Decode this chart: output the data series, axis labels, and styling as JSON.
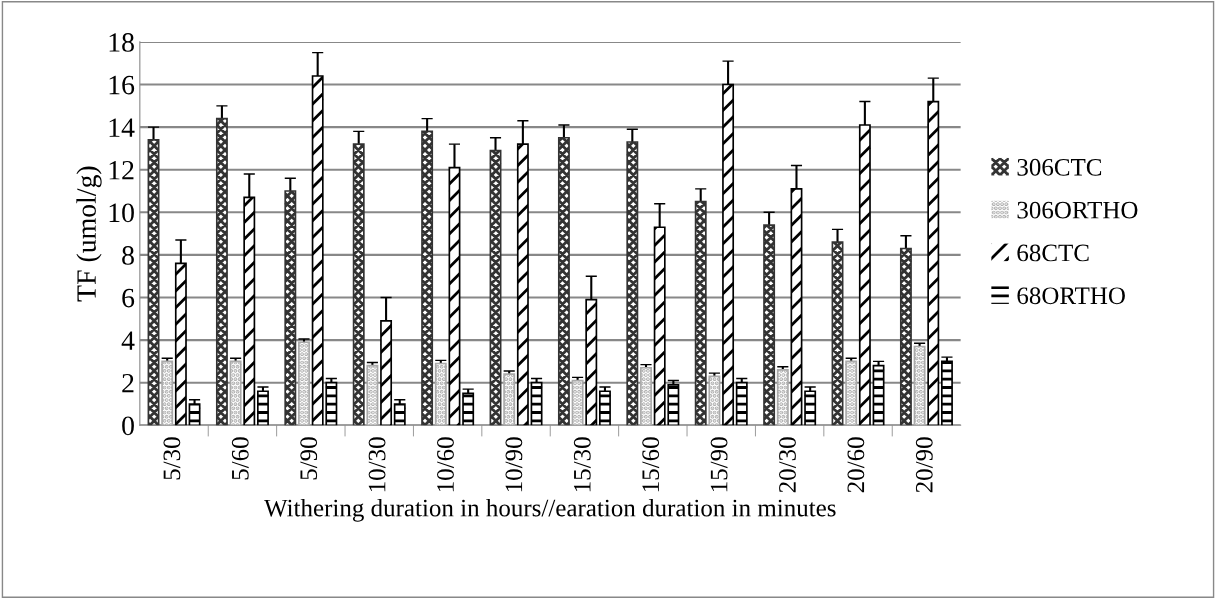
{
  "chart_data": {
    "type": "bar",
    "xlabel": "Withering duration in hours//earation duration in minutes",
    "ylabel": "TF (umol/g)",
    "categories": [
      "5/30",
      "5/60",
      "5/90",
      "10/30",
      "10/60",
      "10/90",
      "15/30",
      "15/60",
      "15/90",
      "20/30",
      "20/60",
      "20/90"
    ],
    "series": [
      {
        "name": "306CTC",
        "color": "#333333",
        "values": [
          13.4,
          14.4,
          11.0,
          13.2,
          13.8,
          12.9,
          13.5,
          13.3,
          10.5,
          9.4,
          8.6,
          8.3
        ],
        "errors": [
          0.6,
          0.6,
          0.6,
          0.6,
          0.6,
          0.6,
          0.6,
          0.6,
          0.6,
          0.6,
          0.6,
          0.6
        ]
      },
      {
        "name": "306ORTHO",
        "color": "#aaaaaa",
        "values": [
          3.0,
          3.0,
          3.9,
          2.8,
          2.9,
          2.4,
          2.1,
          2.7,
          2.3,
          2.6,
          3.0,
          3.7
        ],
        "errors": [
          0.15,
          0.15,
          0.15,
          0.15,
          0.15,
          0.15,
          0.15,
          0.15,
          0.15,
          0.15,
          0.15,
          0.15
        ]
      },
      {
        "name": "68CTC",
        "color": "#000000",
        "values": [
          7.6,
          10.7,
          16.4,
          4.9,
          12.1,
          13.2,
          5.9,
          9.3,
          16.0,
          11.1,
          14.1,
          15.2
        ],
        "errors": [
          1.1,
          1.1,
          1.1,
          1.1,
          1.1,
          1.1,
          1.1,
          1.1,
          1.1,
          1.1,
          1.1,
          1.1
        ]
      },
      {
        "name": "68ORTHO",
        "color": "#000000",
        "values": [
          1.0,
          1.6,
          2.0,
          1.0,
          1.5,
          2.0,
          1.6,
          1.9,
          2.0,
          1.6,
          2.8,
          3.0
        ],
        "errors": [
          0.2,
          0.2,
          0.2,
          0.2,
          0.2,
          0.2,
          0.2,
          0.2,
          0.2,
          0.2,
          0.2,
          0.2
        ]
      }
    ],
    "ylim": [
      0,
      18
    ],
    "yticks": [
      0,
      2,
      4,
      6,
      8,
      10,
      12,
      14,
      16,
      18
    ],
    "grid": "y",
    "legend": "right"
  }
}
